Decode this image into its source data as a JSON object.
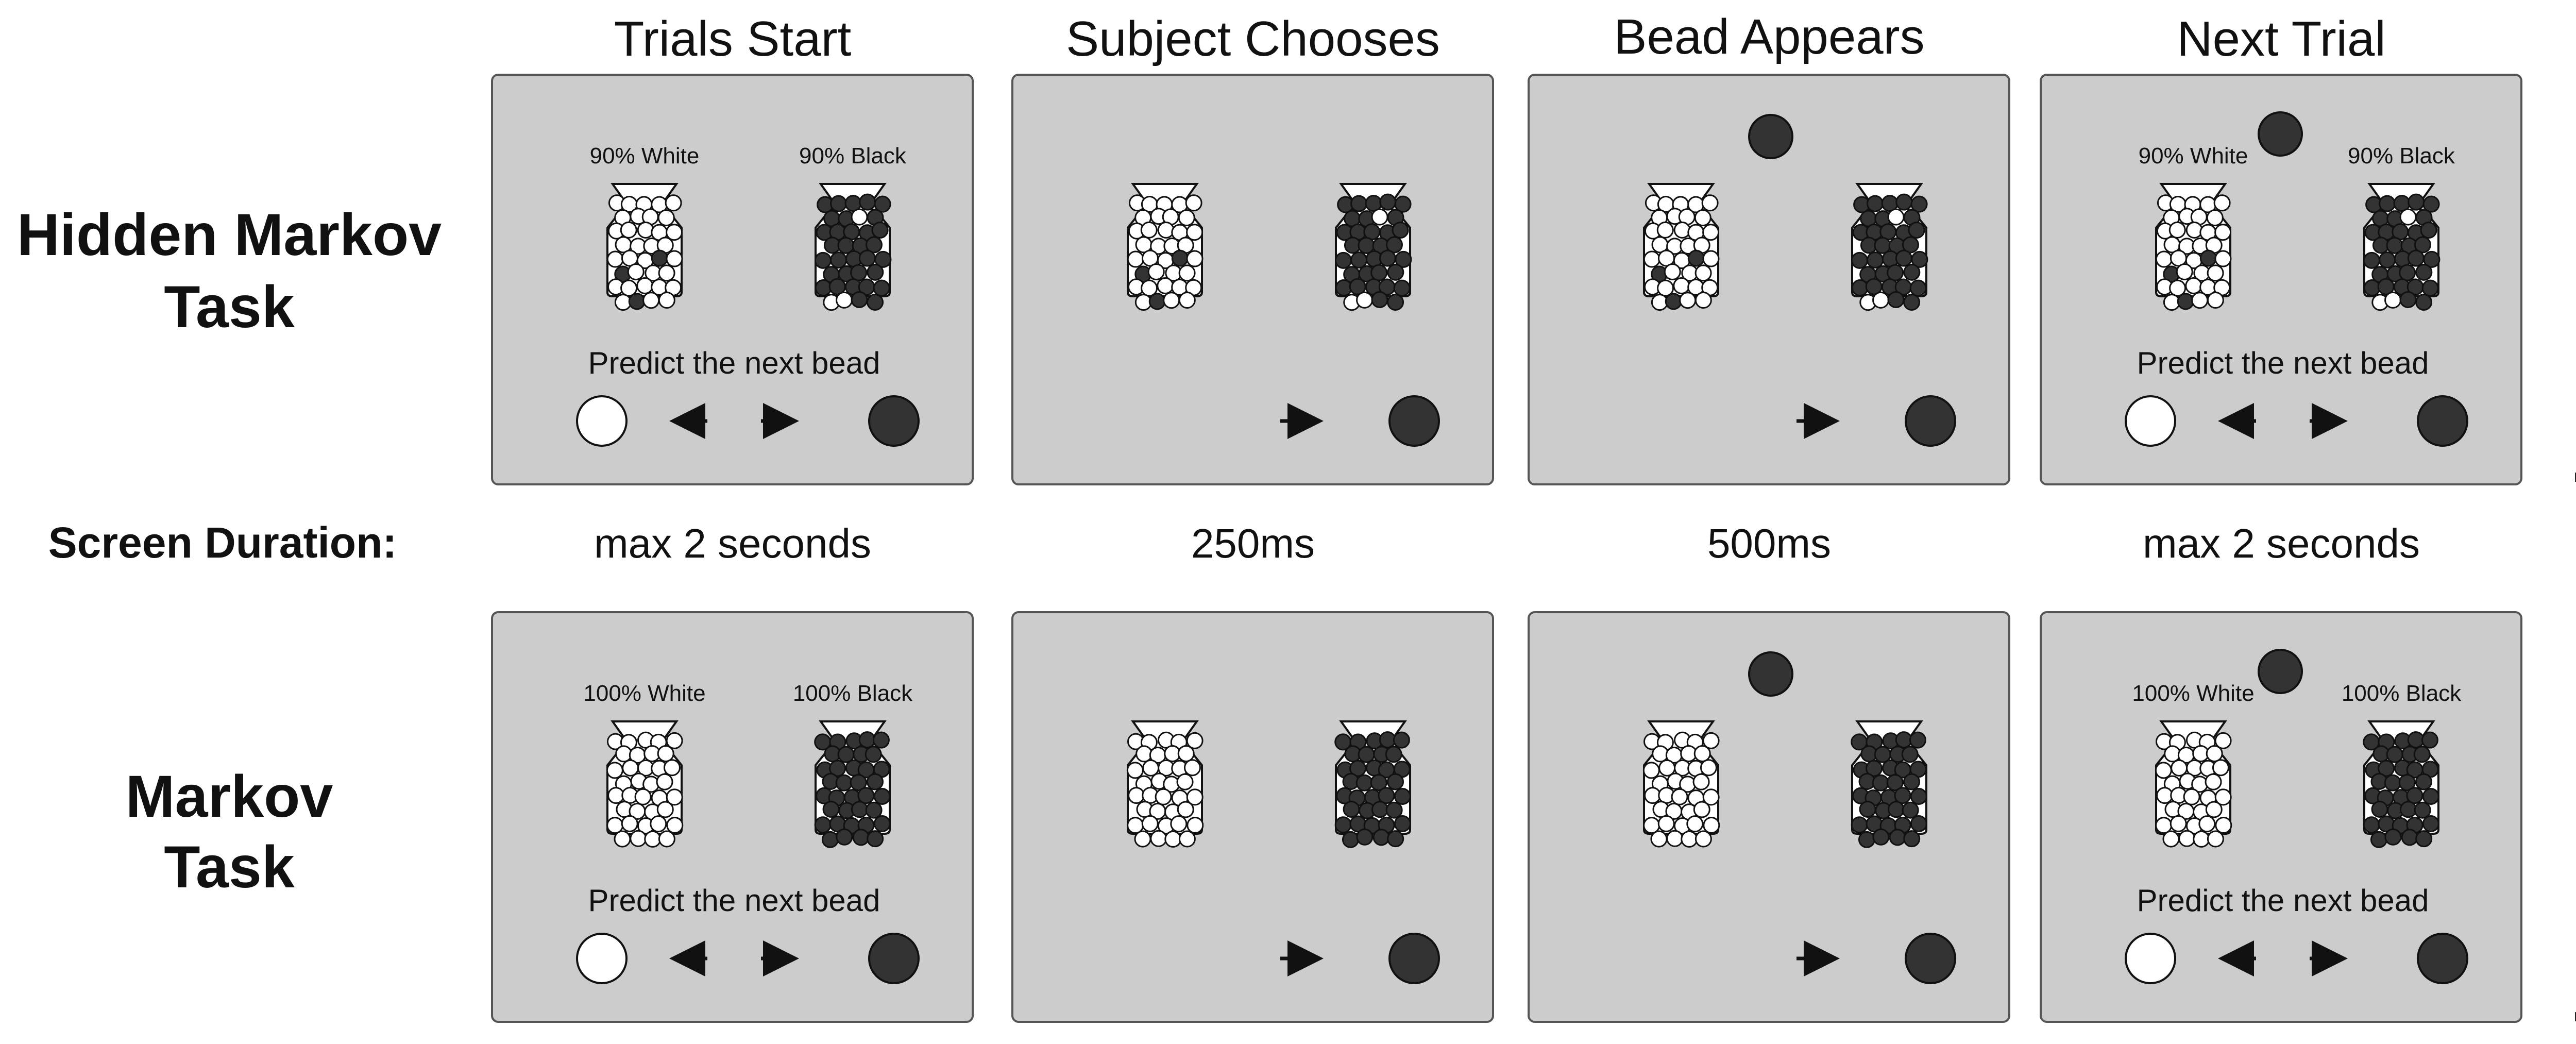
{
  "columns": [
    {
      "title": "Trials Start"
    },
    {
      "title": "Subject Chooses"
    },
    {
      "title": "Bead Appears"
    },
    {
      "title": "Next Trial"
    }
  ],
  "durations": {
    "label": "Screen Duration:",
    "values": [
      "max 2 seconds",
      "250ms",
      "500ms",
      "max 2 seconds"
    ]
  },
  "rows": [
    {
      "title_lines": [
        "Hidden Markov",
        "Task"
      ],
      "jar_labels": {
        "left": "90% White",
        "right": "90% Black"
      },
      "jar_composition": {
        "left_black_fraction": 0.1,
        "right_black_fraction": 0.9
      },
      "prompt": "Predict the next bead",
      "ellipsis": "..."
    },
    {
      "title_lines": [
        "Markov",
        "Task"
      ],
      "jar_labels": {
        "left": "100% White",
        "right": "100% Black"
      },
      "jar_composition": {
        "left_black_fraction": 0.0,
        "right_black_fraction": 1.0
      },
      "prompt": "Predict the next bead",
      "ellipsis": "..."
    }
  ],
  "panels": [
    {
      "show_labels": true,
      "show_prompt": true,
      "choice": "both",
      "bead_shown": false
    },
    {
      "show_labels": false,
      "show_prompt": false,
      "choice": "right",
      "bead_shown": false
    },
    {
      "show_labels": false,
      "show_prompt": false,
      "choice": "right",
      "bead_shown": true
    },
    {
      "show_labels": true,
      "show_prompt": true,
      "choice": "both",
      "bead_shown": true
    }
  ],
  "colors": {
    "panel_fill": "#cccccc",
    "panel_stroke": "#555555",
    "bead_black": "#333333",
    "bead_white": "#ffffff",
    "text": "#111111"
  }
}
